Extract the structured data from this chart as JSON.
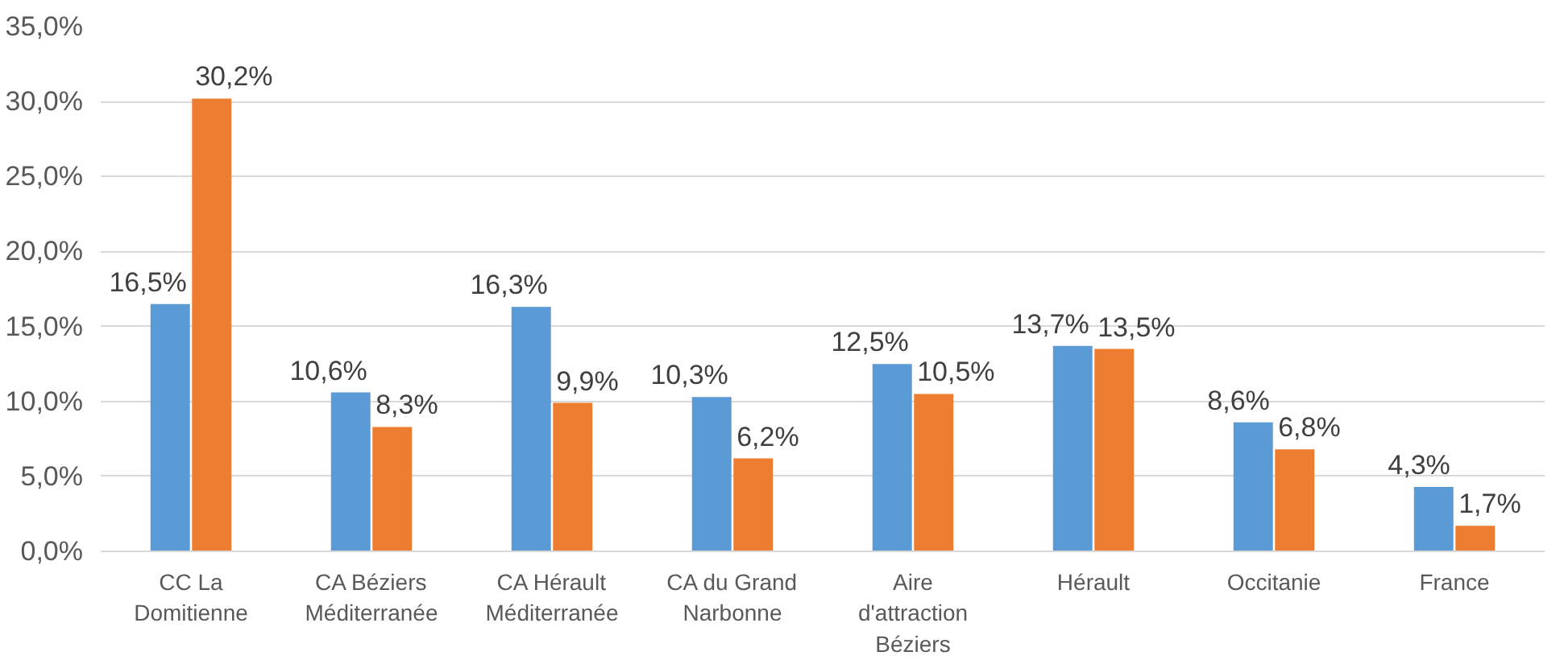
{
  "chart_data": {
    "type": "bar",
    "categories": [
      "CC La Domitienne",
      "CA Béziers Méditerranée",
      "CA Hérault Méditerranée",
      "CA du Grand Narbonne",
      "Aire d'attraction Béziers",
      "Hérault",
      "Occitanie",
      "France"
    ],
    "series": [
      {
        "color": "#5b9bd5",
        "values": [
          16.5,
          10.6,
          16.3,
          10.3,
          12.5,
          13.7,
          8.6,
          4.3
        ],
        "value_labels": [
          "16,5%",
          "10,6%",
          "16,3%",
          "10,3%",
          "12,5%",
          "13,7%",
          "8,6%",
          "4,3%"
        ]
      },
      {
        "color": "#ed7d31",
        "values": [
          30.2,
          8.3,
          9.9,
          6.2,
          10.5,
          13.5,
          6.8,
          1.7
        ],
        "value_labels": [
          "30,2%",
          "8,3%",
          "9,9%",
          "6,2%",
          "10,5%",
          "13,5%",
          "6,8%",
          "1,7%"
        ]
      }
    ],
    "ylim": [
      0,
      35
    ],
    "yticks": [
      {
        "value": 0,
        "label": "0,0%"
      },
      {
        "value": 5,
        "label": "5,0%"
      },
      {
        "value": 10,
        "label": "10,0%"
      },
      {
        "value": 15,
        "label": "15,0%"
      },
      {
        "value": 20,
        "label": "20,0%"
      },
      {
        "value": 25,
        "label": "25,0%"
      },
      {
        "value": 30,
        "label": "30,0%"
      },
      {
        "value": 35,
        "label": "35,0%"
      }
    ],
    "grid": "y"
  }
}
